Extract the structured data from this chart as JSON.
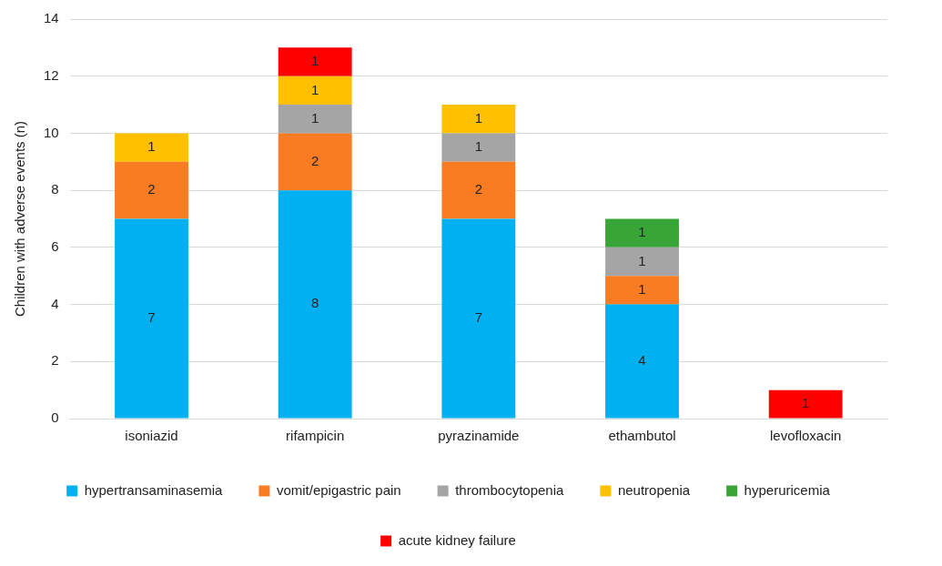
{
  "chart_data": {
    "type": "bar",
    "stacked": true,
    "ylabel": "Children with adverse events (n)",
    "categories": [
      "isoniazid",
      "rifampicin",
      "pyrazinamide",
      "ethambutol",
      "levofloxacin"
    ],
    "series": [
      {
        "name": "hypertransaminasemia",
        "color": "#00b0f0",
        "values": [
          7,
          8,
          7,
          4,
          null
        ]
      },
      {
        "name": "vomit/epigastric pain",
        "color": "#f97b22",
        "values": [
          2,
          2,
          2,
          1,
          null
        ]
      },
      {
        "name": "thrombocytopenia",
        "color": "#a5a5a5",
        "values": [
          null,
          1,
          1,
          1,
          null
        ]
      },
      {
        "name": "neutropenia",
        "color": "#ffc000",
        "values": [
          1,
          1,
          1,
          null,
          null
        ]
      },
      {
        "name": "hyperuricemia",
        "color": "#3aa537",
        "values": [
          null,
          null,
          null,
          1,
          null
        ]
      },
      {
        "name": "acute kidney failure",
        "color": "#ff0000",
        "values": [
          null,
          1,
          null,
          null,
          1
        ]
      }
    ],
    "ylim": [
      0,
      14
    ],
    "yticks": [
      0,
      2,
      4,
      6,
      8,
      10,
      12,
      14
    ],
    "grid": "y",
    "legend": "bottom",
    "data_labels": true
  }
}
